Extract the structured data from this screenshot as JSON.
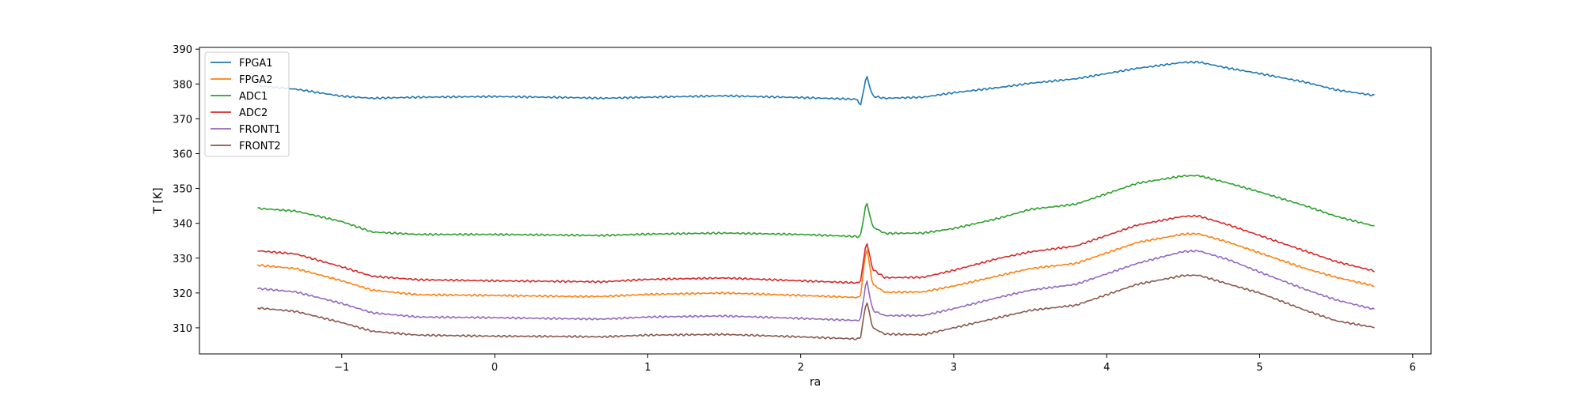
{
  "chart_data": {
    "type": "line",
    "xlabel": "ra",
    "ylabel": "T [K]",
    "xlim": [
      -1.93,
      6.12
    ],
    "ylim": [
      302.5,
      390.5
    ],
    "xticks": [
      -1,
      0,
      1,
      2,
      3,
      4,
      5,
      6
    ],
    "yticks": [
      310,
      320,
      330,
      340,
      350,
      360,
      370,
      380,
      390
    ],
    "grid": false,
    "legend_position": "top-left",
    "x": [
      -1.55,
      -1.3,
      -1.0,
      -0.8,
      -0.5,
      0,
      0.5,
      0.7,
      1.0,
      1.5,
      2.0,
      2.37,
      2.39,
      2.43,
      2.47,
      2.55,
      2.8,
      3.0,
      3.3,
      3.5,
      3.8,
      4.0,
      4.2,
      4.5,
      4.6,
      4.8,
      5.0,
      5.3,
      5.5,
      5.75
    ],
    "series": [
      {
        "name": "FPGA1",
        "color": "#1f77b4",
        "values": [
          379.5,
          378.5,
          376.5,
          375.9,
          376.2,
          376.4,
          376.1,
          375.9,
          376.2,
          376.6,
          376.1,
          375.6,
          373.5,
          382.5,
          376.5,
          375.9,
          376.2,
          377.5,
          379.0,
          380.2,
          381.5,
          383.0,
          384.5,
          386.2,
          386.3,
          384.5,
          383.0,
          380.5,
          378.3,
          376.7
        ]
      },
      {
        "name": "FPGA2",
        "color": "#ff7f0e",
        "values": [
          328.0,
          327.0,
          323.5,
          320.8,
          319.5,
          319.3,
          319.0,
          319.0,
          319.6,
          320.0,
          319.3,
          318.7,
          318.9,
          333.5,
          322.5,
          320.2,
          320.3,
          322.0,
          325.0,
          327.0,
          328.5,
          331.5,
          334.5,
          336.9,
          337.0,
          334.5,
          331.5,
          327.0,
          324.5,
          322.0
        ]
      },
      {
        "name": "ADC1",
        "color": "#2ca02c",
        "values": [
          344.3,
          343.5,
          340.5,
          337.5,
          336.8,
          336.8,
          336.6,
          336.5,
          336.9,
          337.2,
          336.8,
          336.2,
          336.2,
          346.3,
          339.0,
          337.1,
          337.2,
          338.5,
          341.5,
          344.0,
          345.5,
          348.5,
          351.5,
          353.6,
          353.7,
          351.5,
          349.0,
          345.0,
          342.0,
          339.2
        ]
      },
      {
        "name": "ADC2",
        "color": "#d62728",
        "values": [
          332.1,
          331.2,
          327.5,
          324.8,
          323.8,
          323.5,
          323.3,
          323.2,
          323.9,
          324.3,
          323.5,
          322.9,
          323.1,
          335.0,
          326.8,
          324.4,
          324.5,
          326.5,
          330.0,
          331.8,
          333.5,
          336.5,
          339.5,
          342.0,
          342.1,
          339.5,
          336.5,
          332.0,
          329.0,
          326.3
        ]
      },
      {
        "name": "FRONT1",
        "color": "#9467bd",
        "values": [
          321.3,
          320.3,
          317.0,
          314.3,
          313.1,
          312.9,
          312.6,
          312.5,
          313.1,
          313.4,
          312.7,
          312.1,
          312.3,
          324.0,
          315.0,
          313.5,
          313.5,
          315.5,
          318.8,
          320.8,
          322.5,
          325.5,
          328.5,
          331.9,
          332.1,
          329.5,
          326.0,
          321.0,
          318.0,
          315.3
        ]
      },
      {
        "name": "FRONT2",
        "color": "#8c564b",
        "values": [
          315.7,
          314.7,
          311.5,
          309.0,
          307.9,
          307.6,
          307.5,
          307.4,
          307.9,
          308.1,
          307.4,
          306.8,
          307.0,
          318.0,
          310.0,
          308.2,
          308.0,
          310.0,
          313.0,
          315.0,
          316.5,
          319.5,
          322.5,
          325.0,
          325.1,
          322.5,
          320.0,
          315.0,
          312.0,
          310.1
        ]
      }
    ]
  }
}
